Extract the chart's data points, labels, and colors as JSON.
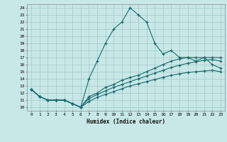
{
  "xlabel": "Humidex (Indice chaleur)",
  "bg_color": "#c8e8e8",
  "grid_color": "#a0c8c8",
  "line_color": "#1a6b6b",
  "xlim": [
    -0.5,
    23.5
  ],
  "ylim": [
    9.5,
    24.5
  ],
  "xticks": [
    0,
    1,
    2,
    3,
    4,
    5,
    6,
    7,
    8,
    9,
    10,
    11,
    12,
    13,
    14,
    15,
    16,
    17,
    18,
    19,
    20,
    21,
    22,
    23
  ],
  "yticks": [
    10,
    11,
    12,
    13,
    14,
    15,
    16,
    17,
    18,
    19,
    20,
    21,
    22,
    23,
    24
  ],
  "lines": [
    {
      "x": [
        0,
        1,
        2,
        3,
        4,
        5,
        6,
        7,
        8,
        9,
        10,
        11,
        12,
        13,
        14,
        15,
        16,
        17,
        18,
        19,
        20,
        21,
        22,
        23
      ],
      "y": [
        12.5,
        11.5,
        11.0,
        11.0,
        11.0,
        10.5,
        10.0,
        14.0,
        16.5,
        19.0,
        21.0,
        22.0,
        24.0,
        23.0,
        22.0,
        19.0,
        17.5,
        18.0,
        17.0,
        17.0,
        16.5,
        17.0,
        16.0,
        15.5
      ]
    },
    {
      "x": [
        0,
        1,
        2,
        3,
        4,
        5,
        6,
        7,
        8,
        9,
        10,
        11,
        12,
        13,
        14,
        15,
        16,
        17,
        18,
        19,
        20,
        21,
        22,
        23
      ],
      "y": [
        12.5,
        11.5,
        11.0,
        11.0,
        11.0,
        10.5,
        10.0,
        11.5,
        12.0,
        12.8,
        13.2,
        13.8,
        14.2,
        14.5,
        15.0,
        15.5,
        16.0,
        16.5,
        16.8,
        17.0,
        17.0,
        17.0,
        17.0,
        17.0
      ]
    },
    {
      "x": [
        0,
        1,
        2,
        3,
        4,
        5,
        6,
        7,
        8,
        9,
        10,
        11,
        12,
        13,
        14,
        15,
        16,
        17,
        18,
        19,
        20,
        21,
        22,
        23
      ],
      "y": [
        12.5,
        11.5,
        11.0,
        11.0,
        11.0,
        10.5,
        10.0,
        11.2,
        11.8,
        12.3,
        12.8,
        13.2,
        13.6,
        14.0,
        14.4,
        14.8,
        15.2,
        15.6,
        15.9,
        16.2,
        16.4,
        16.6,
        16.7,
        16.5
      ]
    },
    {
      "x": [
        0,
        1,
        2,
        3,
        4,
        5,
        6,
        7,
        8,
        9,
        10,
        11,
        12,
        13,
        14,
        15,
        16,
        17,
        18,
        19,
        20,
        21,
        22,
        23
      ],
      "y": [
        12.5,
        11.5,
        11.0,
        11.0,
        11.0,
        10.5,
        10.0,
        10.8,
        11.4,
        11.8,
        12.2,
        12.6,
        13.0,
        13.3,
        13.6,
        13.9,
        14.2,
        14.5,
        14.7,
        14.9,
        15.0,
        15.1,
        15.2,
        15.0
      ]
    }
  ]
}
